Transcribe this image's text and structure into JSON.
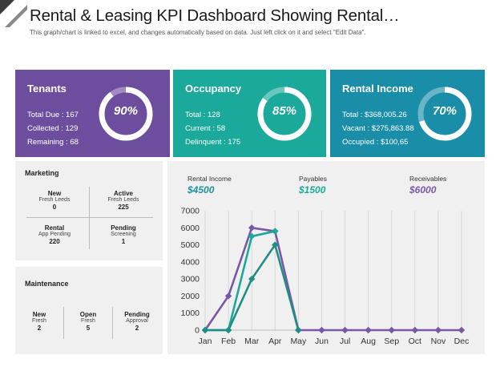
{
  "header": {
    "title": "Rental & Leasing KPI Dashboard Showing Rental…",
    "subtitle": "This graph/chart is linked to excel, and changes automatically based on data. Just left click on it and select \"Edit Data\"."
  },
  "colors": {
    "tenants": "#6d4e9e",
    "occupancy": "#1aa99a",
    "income": "#1a8da8",
    "purple_line": "#7a57a5",
    "teal_line": "#1aa99a",
    "teal_dark": "#1f8f86",
    "panel": "#f0f0f0"
  },
  "kpis": {
    "tenants": {
      "title": "Tenants",
      "lines": [
        "Total Due : 167",
        "Collected : 129",
        "Remaining : 68"
      ],
      "percent": 90,
      "percent_label": "90%"
    },
    "occupancy": {
      "title": "Occupancy",
      "lines": [
        "Total : 128",
        "Current : 58",
        "Delinquent : 175"
      ],
      "percent": 85,
      "percent_label": "85%"
    },
    "income": {
      "title": "Rental Income",
      "lines": [
        "Total : $368,005.26",
        "Vacant : $275,863.88",
        "Occupied : $100,65"
      ],
      "percent": 70,
      "percent_label": "70%"
    }
  },
  "marketing": {
    "title": "Marketing",
    "cells": [
      {
        "head": "New",
        "sub": "Fresh Leeds",
        "val": "0"
      },
      {
        "head": "Active",
        "sub": "Fresh Leeds",
        "val": "225"
      },
      {
        "head": "Rental",
        "sub": "App Pending",
        "val": "220"
      },
      {
        "head": "Pending",
        "sub": "Screening",
        "val": "1"
      }
    ]
  },
  "maintenance": {
    "title": "Maintenance",
    "cells": [
      {
        "head": "New",
        "sub": "Fresh",
        "val": "2"
      },
      {
        "head": "Open",
        "sub": "Fresh",
        "val": "5"
      },
      {
        "head": "Pending",
        "sub": "Approval",
        "val": "2"
      }
    ]
  },
  "chart_data": {
    "type": "line",
    "categories": [
      "Jan",
      "Feb",
      "Mar",
      "Apr",
      "May",
      "Jun",
      "Jul",
      "Aug",
      "Sep",
      "Oct",
      "Nov",
      "Dec"
    ],
    "ylim": [
      0,
      7000
    ],
    "yticks": [
      "0",
      "1000",
      "2000",
      "3000",
      "4000",
      "5000",
      "6000",
      "7000"
    ],
    "grid": "vertical",
    "legend": [
      {
        "label": "Rental Income",
        "value": "$4500"
      },
      {
        "label": "Payables",
        "value": "$1500"
      },
      {
        "label": "Receivables",
        "value": "$6000"
      }
    ],
    "series": [
      {
        "values": [
          0,
          2000,
          6000,
          5800,
          0,
          0,
          0,
          0,
          0,
          0,
          0,
          0
        ]
      },
      {
        "values": [
          0,
          0,
          5500,
          5800,
          null,
          null,
          null,
          null,
          null,
          null,
          null,
          null
        ]
      },
      {
        "values": [
          0,
          0,
          3000,
          5000,
          0,
          null,
          null,
          null,
          null,
          null,
          null,
          null
        ]
      }
    ]
  }
}
